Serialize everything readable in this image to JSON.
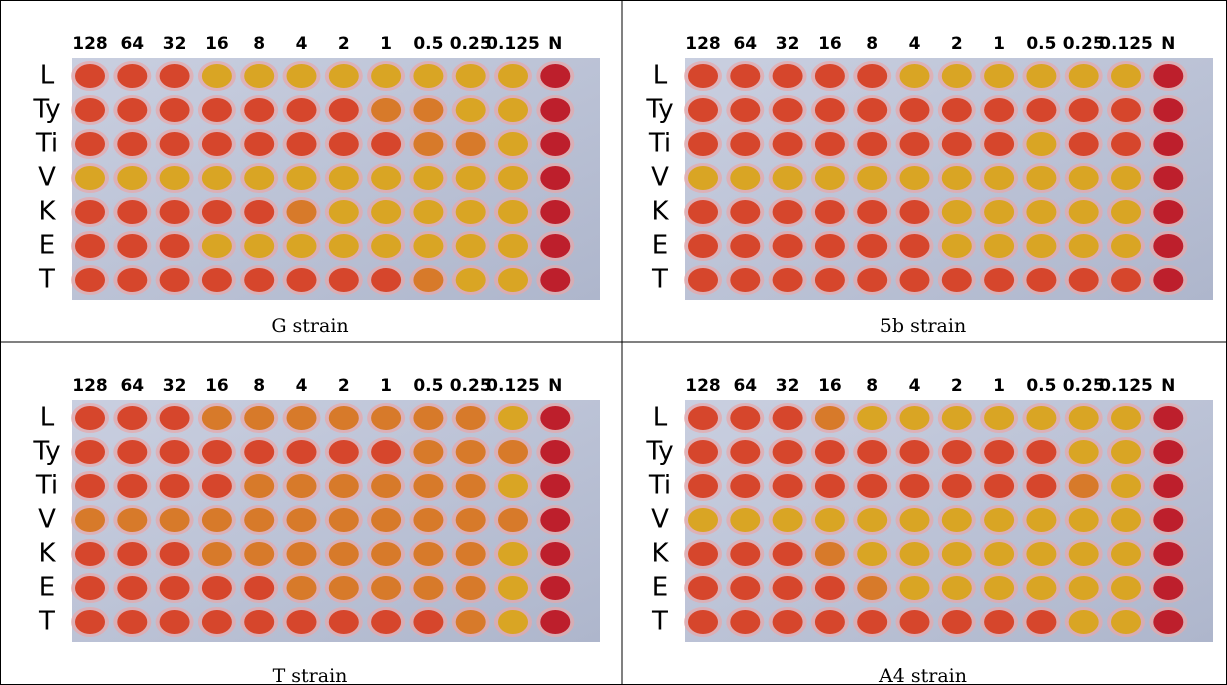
{
  "panels": [
    {
      "columns": [
        "128",
        "64",
        "32",
        "16",
        "8",
        "4",
        "2",
        "1",
        "0.5",
        "0.25",
        "0.125",
        "N"
      ],
      "rows": [
        "L",
        "Ty",
        "Ti",
        "V",
        "K",
        "E",
        "T"
      ],
      "caption": "G strain"
    },
    {
      "columns": [
        "128",
        "64",
        "32",
        "16",
        "8",
        "4",
        "2",
        "1",
        "0.5",
        "0.25",
        "0.125",
        "N"
      ],
      "rows": [
        "L",
        "Ty",
        "Ti",
        "V",
        "K",
        "E",
        "T"
      ],
      "caption": "5b strain"
    },
    {
      "columns": [
        "128",
        "64",
        "32",
        "16",
        "8",
        "4",
        "2",
        "1",
        "0.5",
        "0.25",
        "0.125",
        "N"
      ],
      "rows": [
        "L",
        "Ty",
        "Ti",
        "V",
        "K",
        "E",
        "T"
      ],
      "caption": "T strain"
    },
    {
      "columns": [
        "128",
        "64",
        "32",
        "16",
        "8",
        "4",
        "2",
        "1",
        "0.5",
        "0.25",
        "0.125",
        "N"
      ],
      "rows": [
        "L",
        "Ty",
        "Ti",
        "V",
        "K",
        "E",
        "T"
      ],
      "caption": "A4 strain"
    }
  ]
}
